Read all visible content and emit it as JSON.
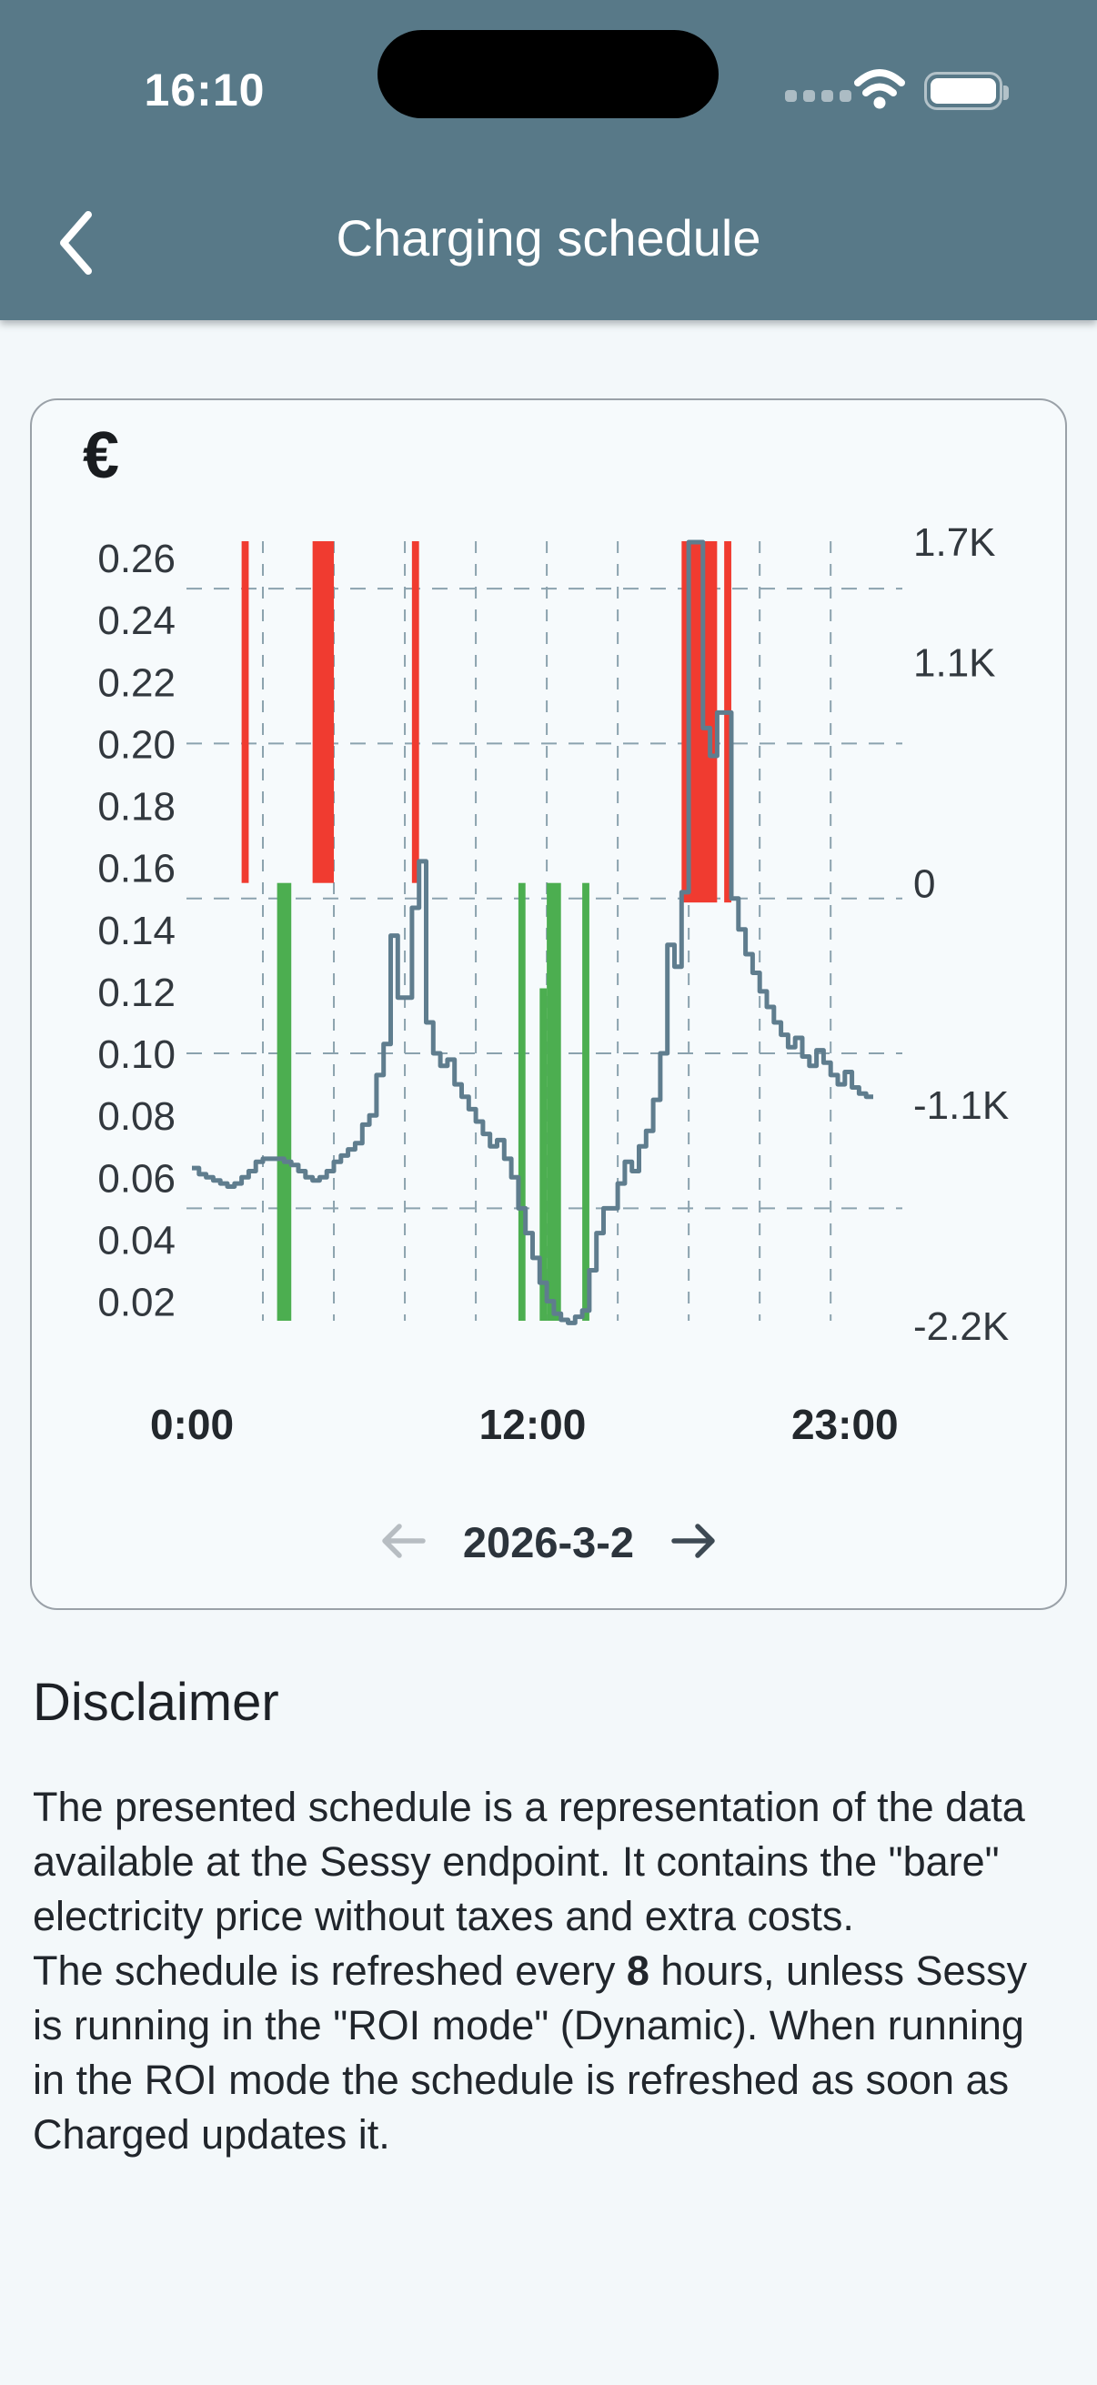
{
  "status_bar": {
    "time": "16:10"
  },
  "header": {
    "title": "Charging schedule"
  },
  "chart_card": {
    "date": "2026-3-2"
  },
  "disclaimer": {
    "heading": "Disclaimer",
    "p1": "The presented schedule is a representation of the data available at the Sessy endpoint. It contains the \"bare\" electricity price without taxes and extra costs.",
    "p2_pre": "The schedule is refreshed every ",
    "p2_bold": "8",
    "p2_post": " hours, unless Sessy is running in the \"ROI mode\" (Dynamic). When running in the ROI mode the schedule is refreshed as soon as Charged updates it."
  },
  "chart_data": {
    "type": "combo",
    "title": "€",
    "x_axis": {
      "unit": "time of day",
      "range_hours": [
        0,
        24
      ],
      "tick_labels": [
        {
          "label": "0:00",
          "hour": 0
        },
        {
          "label": "12:00",
          "hour": 12
        },
        {
          "label": "23:00",
          "hour": 23
        }
      ],
      "gridline_hours": [
        2.5,
        5,
        7.5,
        10,
        12.5,
        15,
        17.5,
        20,
        22.5
      ]
    },
    "y_axis_price": {
      "unit": "EUR/kWh",
      "range": [
        0.0137,
        0.2653
      ],
      "ticks": [
        {
          "label": "0.26",
          "value": 0.26
        },
        {
          "label": "0.24",
          "value": 0.24
        },
        {
          "label": "0.22",
          "value": 0.22
        },
        {
          "label": "0.20",
          "value": 0.2
        },
        {
          "label": "0.18",
          "value": 0.18
        },
        {
          "label": "0.16",
          "value": 0.16
        },
        {
          "label": "0.14",
          "value": 0.14
        },
        {
          "label": "0.12",
          "value": 0.12
        },
        {
          "label": "0.10",
          "value": 0.1
        },
        {
          "label": "0.08",
          "value": 0.08
        },
        {
          "label": "0.06",
          "value": 0.06
        },
        {
          "label": "0.04",
          "value": 0.04
        },
        {
          "label": "0.02",
          "value": 0.02
        }
      ],
      "gridline_values": [
        0.25,
        0.2,
        0.15,
        0.1,
        0.05
      ]
    },
    "y_axis_power": {
      "unit": "W",
      "zero_price_level": 0.155,
      "ticks": [
        {
          "label": "1.7K",
          "value": 1700
        },
        {
          "label": "1.1K",
          "value": 1100
        },
        {
          "label": "0",
          "value": 0
        },
        {
          "label": "-1.1K",
          "value": -1100
        },
        {
          "label": "-2.2K",
          "value": -2200
        }
      ]
    },
    "price_series": {
      "name": "bare electricity price",
      "resolution_minutes": 15,
      "start_hour": 0,
      "values": [
        0.063,
        0.061,
        0.06,
        0.059,
        0.058,
        0.057,
        0.058,
        0.06,
        0.062,
        0.065,
        0.066,
        0.066,
        0.066,
        0.065,
        0.064,
        0.062,
        0.06,
        0.059,
        0.06,
        0.062,
        0.065,
        0.067,
        0.069,
        0.071,
        0.077,
        0.08,
        0.093,
        0.103,
        0.138,
        0.118,
        0.118,
        0.147,
        0.162,
        0.11,
        0.1,
        0.096,
        0.098,
        0.09,
        0.086,
        0.082,
        0.078,
        0.074,
        0.07,
        0.072,
        0.066,
        0.06,
        0.05,
        0.042,
        0.034,
        0.026,
        0.02,
        0.016,
        0.014,
        0.013,
        0.015,
        0.017,
        0.03,
        0.042,
        0.05,
        0.05,
        0.058,
        0.065,
        0.062,
        0.07,
        0.075,
        0.085,
        0.1,
        0.135,
        0.128,
        0.152,
        0.265,
        0.265,
        0.205,
        0.196,
        0.21,
        0.21,
        0.15,
        0.14,
        0.132,
        0.126,
        0.12,
        0.115,
        0.11,
        0.106,
        0.102,
        0.105,
        0.099,
        0.096,
        0.101,
        0.097,
        0.093,
        0.09,
        0.094,
        0.089,
        0.087,
        0.086
      ]
    },
    "discharge_bars": [
      {
        "start_hour": 1.75,
        "end_hour": 2.0
      },
      {
        "start_hour": 4.25,
        "end_hour": 5.0
      },
      {
        "start_hour": 7.75,
        "end_hour": 8.0
      },
      {
        "start_hour": 17.25,
        "end_hour": 18.5,
        "overshoot": true
      },
      {
        "start_hour": 18.75,
        "end_hour": 19.0,
        "overshoot": true
      }
    ],
    "charge_bars": [
      {
        "start_hour": 3.0,
        "end_hour": 3.5
      },
      {
        "start_hour": 11.5,
        "end_hour": 11.75
      },
      {
        "start_hour": 12.25,
        "end_hour": 12.5,
        "partial": true
      },
      {
        "start_hour": 12.5,
        "end_hour": 13.0
      },
      {
        "start_hour": 13.75,
        "end_hour": 14.0
      }
    ],
    "colors": {
      "price_line": "#5f7d8e",
      "discharge": "#f03b30",
      "charge": "#4cae50",
      "grid": "#8ba2ae",
      "axis_text": "#32383e"
    }
  }
}
